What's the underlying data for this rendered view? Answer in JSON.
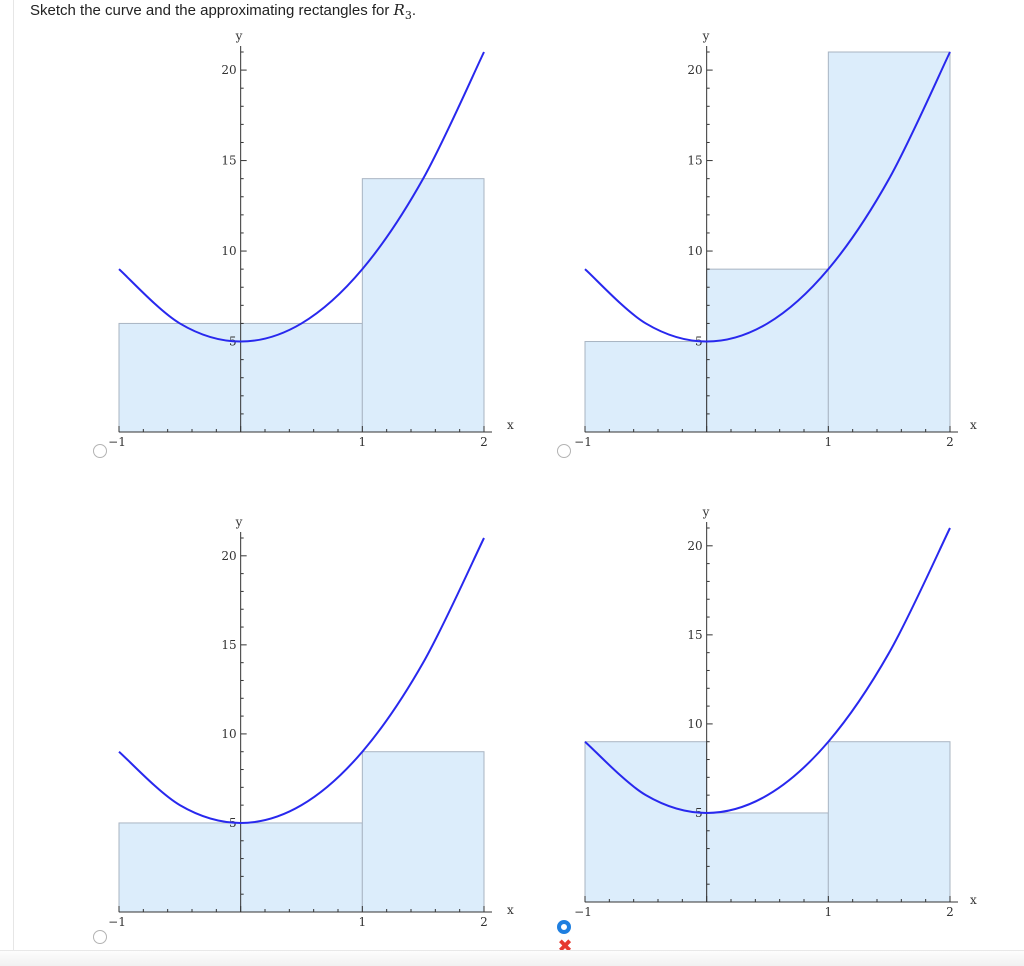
{
  "prompt": {
    "before": "Sketch the curve and the approximating rectangles for ",
    "symbol": "R",
    "subscript": "3",
    "after": "."
  },
  "colors": {
    "curve": "#2828ee",
    "rect_fill": "#dcedfb",
    "rect_stroke": "#a9b4c2",
    "axis": "#333333",
    "radio_selected": "#1f7fe0",
    "wrong_mark": "#e63a30"
  },
  "options": [
    {
      "selected": false,
      "chart_data": {
        "type": "area",
        "title": "",
        "xlabel": "x",
        "ylabel": "y",
        "xlim": [
          -1,
          2
        ],
        "ylim": [
          0,
          21
        ],
        "x_ticks": [
          -1,
          1,
          2
        ],
        "y_ticks": [
          5,
          10,
          15,
          20
        ],
        "curve": {
          "x": [
            -1,
            -0.5,
            0,
            0.5,
            1,
            1.5,
            2
          ],
          "y": [
            9,
            6,
            5,
            6,
            9,
            14,
            21
          ]
        },
        "rectangles": [
          {
            "x0": -1,
            "x1": 1,
            "height": 6
          },
          {
            "x0": 1,
            "x1": 2,
            "height": 14
          }
        ]
      }
    },
    {
      "selected": false,
      "chart_data": {
        "type": "area",
        "title": "",
        "xlabel": "x",
        "ylabel": "y",
        "xlim": [
          -1,
          2
        ],
        "ylim": [
          0,
          21
        ],
        "x_ticks": [
          -1,
          1,
          2
        ],
        "y_ticks": [
          5,
          10,
          15,
          20
        ],
        "curve": {
          "x": [
            -1,
            -0.5,
            0,
            0.5,
            1,
            1.5,
            2
          ],
          "y": [
            9,
            6,
            5,
            6,
            9,
            14,
            21
          ]
        },
        "rectangles": [
          {
            "x0": -1,
            "x1": 0,
            "height": 5
          },
          {
            "x0": 0,
            "x1": 1,
            "height": 9
          },
          {
            "x0": 1,
            "x1": 2,
            "height": 21
          }
        ]
      }
    },
    {
      "selected": false,
      "chart_data": {
        "type": "area",
        "title": "",
        "xlabel": "x",
        "ylabel": "y",
        "xlim": [
          -1,
          2
        ],
        "ylim": [
          0,
          21
        ],
        "x_ticks": [
          -1,
          1,
          2
        ],
        "y_ticks": [
          5,
          10,
          15,
          20
        ],
        "curve": {
          "x": [
            -1,
            -0.5,
            0,
            0.5,
            1,
            1.5,
            2
          ],
          "y": [
            9,
            6,
            5,
            6,
            9,
            14,
            21
          ]
        },
        "rectangles": [
          {
            "x0": -1,
            "x1": 1,
            "height": 5
          },
          {
            "x0": 1,
            "x1": 2,
            "height": 9
          }
        ]
      }
    },
    {
      "selected": true,
      "chart_data": {
        "type": "area",
        "title": "",
        "xlabel": "x",
        "ylabel": "y",
        "xlim": [
          -1,
          2
        ],
        "ylim": [
          0,
          21
        ],
        "x_ticks": [
          -1,
          1,
          2
        ],
        "y_ticks": [
          5,
          10,
          15,
          20
        ],
        "curve": {
          "x": [
            -1,
            -0.5,
            0,
            0.5,
            1,
            1.5,
            2
          ],
          "y": [
            9,
            6,
            5,
            6,
            9,
            14,
            21
          ]
        },
        "rectangles": [
          {
            "x0": -1,
            "x1": 0,
            "height": 9
          },
          {
            "x0": 0,
            "x1": 1,
            "height": 5
          },
          {
            "x0": 1,
            "x1": 2,
            "height": 9
          }
        ]
      }
    }
  ],
  "feedback": {
    "icon": "x-mark-icon",
    "symbol": "✖"
  }
}
